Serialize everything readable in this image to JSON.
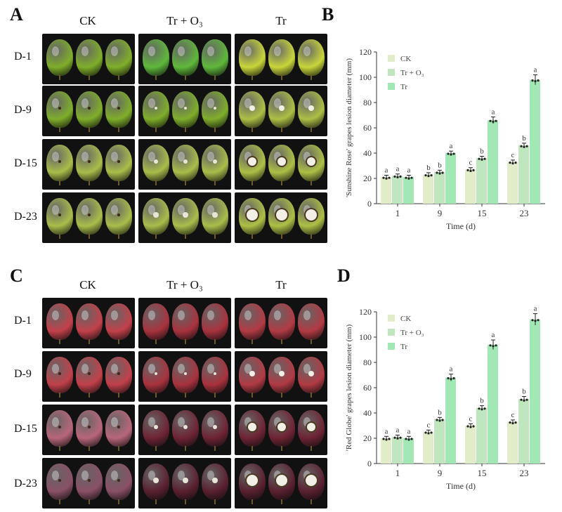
{
  "panels": {
    "A": {
      "letter": "A",
      "columns": [
        "CK",
        "Tr + O₃",
        "Tr"
      ],
      "rows": [
        "D-1",
        "D-9",
        "D-15",
        "D-23"
      ],
      "variety": "green"
    },
    "C": {
      "letter": "C",
      "columns": [
        "CK",
        "Tr + O₃",
        "Tr"
      ],
      "rows": [
        "D-1",
        "D-9",
        "D-15",
        "D-23"
      ],
      "variety": "red"
    }
  },
  "chart_data": [
    {
      "panel": "B",
      "type": "bar",
      "categories": [
        "1",
        "9",
        "15",
        "23"
      ],
      "series": [
        {
          "name": "CK",
          "values": [
            21,
            23,
            27,
            33
          ],
          "letters": [
            "a",
            "b",
            "c",
            "c"
          ]
        },
        {
          "name": "Tr + O₃",
          "values": [
            22,
            25,
            36,
            46
          ],
          "letters": [
            "a",
            "b",
            "b",
            "b"
          ]
        },
        {
          "name": "Tr",
          "values": [
            21,
            40,
            66,
            98
          ],
          "letters": [
            "a",
            "a",
            "a",
            "a"
          ]
        }
      ],
      "xlabel": "Time (d)",
      "ylabel": "'Sunshine Rose' grapes lesion diameter (mm)",
      "ylim": [
        0,
        120
      ],
      "yticks": [
        0,
        20,
        40,
        60,
        80,
        100,
        120
      ],
      "legend_position": "top-left",
      "colors": [
        "#e0edc8",
        "#bfe6bf",
        "#a2e8b4"
      ]
    },
    {
      "panel": "D",
      "type": "bar",
      "categories": [
        "1",
        "9",
        "15",
        "23"
      ],
      "series": [
        {
          "name": "CK",
          "values": [
            20,
            25,
            30,
            33
          ],
          "letters": [
            "a",
            "c",
            "c",
            "c"
          ]
        },
        {
          "name": "Tr + O₃",
          "values": [
            21,
            35,
            44,
            51
          ],
          "letters": [
            "a",
            "b",
            "b",
            "b"
          ]
        },
        {
          "name": "Tr",
          "values": [
            20,
            68,
            94,
            114
          ],
          "letters": [
            "a",
            "a",
            "a",
            "a"
          ]
        }
      ],
      "xlabel": "Time (d)",
      "ylabel": "'Red Globe' grapes lesion diameter (mm)",
      "ylim": [
        0,
        120
      ],
      "yticks": [
        0,
        20,
        40,
        60,
        80,
        100,
        120
      ],
      "legend_position": "top-left",
      "colors": [
        "#e0edc8",
        "#bfe6bf",
        "#a2e8b4"
      ]
    }
  ]
}
